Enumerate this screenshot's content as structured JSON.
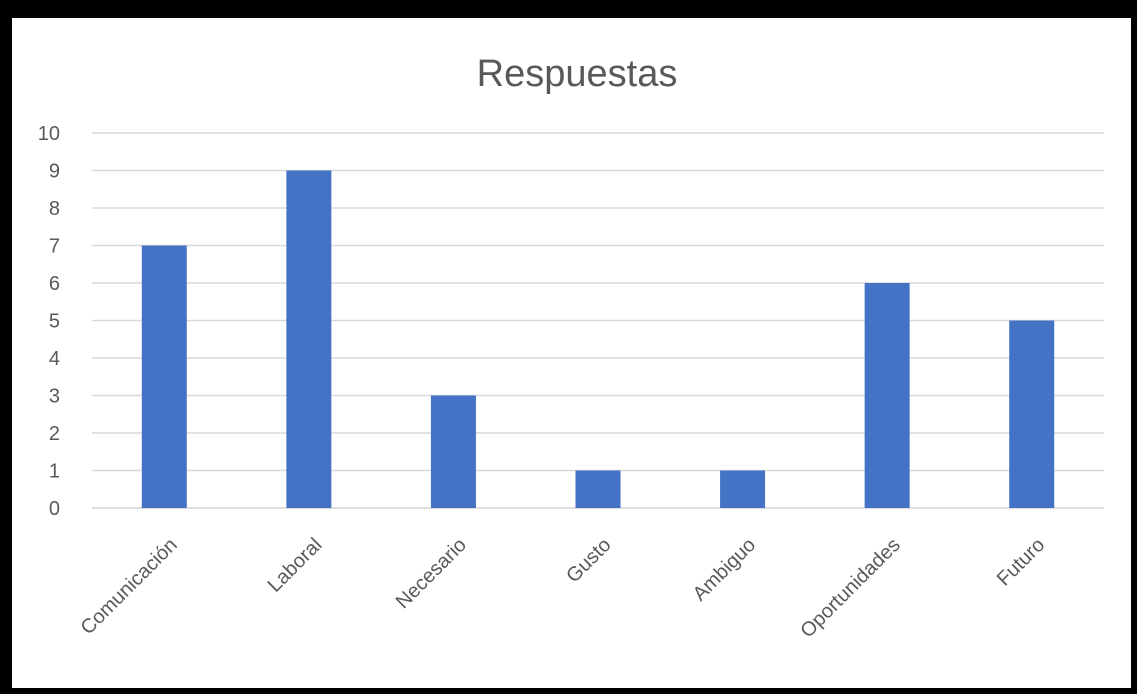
{
  "chart_data": {
    "type": "bar",
    "title": "Respuestas",
    "xlabel": "",
    "ylabel": "",
    "categories": [
      "Comunicación",
      "Laboral",
      "Necesario",
      "Gusto",
      "Ambiguo",
      "Oportunidades",
      "Futuro"
    ],
    "values": [
      7,
      9,
      3,
      1,
      1,
      6,
      5
    ],
    "ylim": [
      0,
      10
    ],
    "yticks": [
      "0",
      "1",
      "2",
      "3",
      "4",
      "5",
      "6",
      "7",
      "8",
      "9",
      "10"
    ],
    "grid": true,
    "legend": "none",
    "bar_color": "#4472C4",
    "grid_color": "#D9D9D9",
    "text_color": "#595959"
  }
}
